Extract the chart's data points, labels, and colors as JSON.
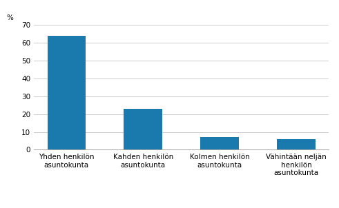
{
  "categories": [
    "Yhden henkilön\nasuntokunta",
    "Kahden henkilön\nasuntokunta",
    "Kolmen henkilön\nasuntokunta",
    "Vähintään neljän\nhenkilön\nasuntokunta"
  ],
  "values": [
    64,
    23,
    7,
    6
  ],
  "bar_color": "#1a7aad",
  "ylabel": "%",
  "ylim": [
    0,
    70
  ],
  "yticks": [
    0,
    10,
    20,
    30,
    40,
    50,
    60,
    70
  ],
  "background_color": "#ffffff",
  "grid_color": "#cccccc",
  "tick_labelsize": 7.5,
  "bar_width": 0.5
}
